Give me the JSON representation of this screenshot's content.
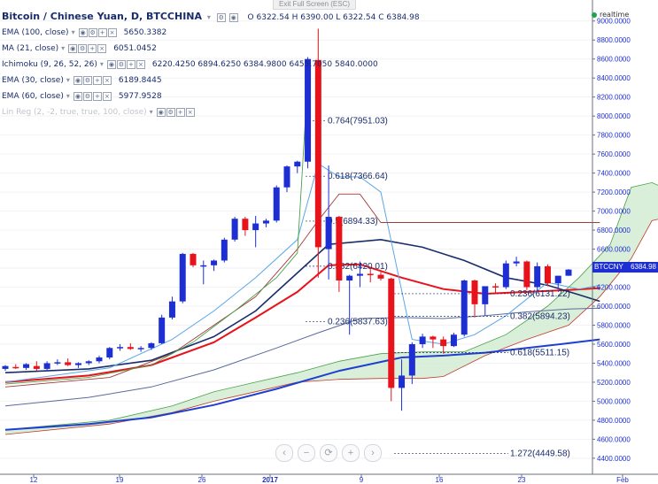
{
  "header": {
    "title": "Bitcoin / Chinese Yuan, D, BTCCHINA",
    "ohlc": "O 6322.54 H 6390.00 L 6322.54 C 6384.98",
    "exit_full_screen": "Exit Full Screen (ESC)",
    "realtime": "realtime"
  },
  "indicators": [
    {
      "label": "EMA (100, close)",
      "value": "5650.3382",
      "color": "#1f3fcf",
      "dim": false
    },
    {
      "label": "MA (21, close)",
      "value": "6051.0452",
      "color": "#1a2d6b",
      "dim": false
    },
    {
      "label": "Ichimoku (9, 26, 52, 26)",
      "value": "6220.4250  6894.6250  6384.9800  6455.7050  5840.0000",
      "color": "#1a2d6b",
      "dim": false
    },
    {
      "label": "EMA (30, close)",
      "value": "6189.8445",
      "color": "#1a2d6b",
      "dim": false
    },
    {
      "label": "EMA (60, close)",
      "value": "5977.9528",
      "color": "#1a2d6b",
      "dim": false
    },
    {
      "label": "Lin Reg (2, -2, true, true, 100, close)",
      "value": "",
      "color": "#c0c4cc",
      "dim": true
    }
  ],
  "price_tag": {
    "symbol": "BTCCNY",
    "value": "6384.98"
  },
  "zoom_buttons": [
    "‹",
    "−",
    "⟳",
    "+",
    "›"
  ],
  "chart_data": {
    "type": "candlestick",
    "y_axis_labels": [
      "9000.0000",
      "8800.0000",
      "8600.0000",
      "8400.0000",
      "8200.0000",
      "8000.0000",
      "7800.0000",
      "7600.0000",
      "7400.0000",
      "7200.0000",
      "7000.0000",
      "6800.0000",
      "6600.0000",
      "6400.0000",
      "6200.0000",
      "6000.0000",
      "5800.0000",
      "5600.0000",
      "5400.0000",
      "5200.0000",
      "5000.0000",
      "4800.0000",
      "4600.0000",
      "4400.0000"
    ],
    "ylim": [
      4250,
      9100
    ],
    "x_tick_labels": [
      "12",
      "19",
      "26",
      "2017",
      "9",
      "16",
      "23",
      "Feb"
    ],
    "fib_levels": [
      {
        "label": "0.764(7951.03)",
        "value": 7951.03
      },
      {
        "label": "0.618(7366.64)",
        "value": 7366.64
      },
      {
        "label": "0.5(6894.33)",
        "value": 6894.33
      },
      {
        "label": "0.382(6420.01)",
        "value": 6420.01
      },
      {
        "label": "0.236(5837.63)",
        "value": 5837.63
      },
      {
        "label": "0.236(6131.22)",
        "value": 6131.22
      },
      {
        "label": "0.382(5894.23)",
        "value": 5894.23
      },
      {
        "label": "0.618(5511.15)",
        "value": 5511.15
      },
      {
        "label": "1.272(4449.58)",
        "value": 4449.58
      }
    ],
    "candles": [
      [
        5340,
        5380,
        5320,
        5370
      ],
      [
        5360,
        5390,
        5340,
        5350
      ],
      [
        5350,
        5400,
        5330,
        5390
      ],
      [
        5370,
        5420,
        5320,
        5340
      ],
      [
        5340,
        5420,
        5320,
        5400
      ],
      [
        5400,
        5440,
        5380,
        5410
      ],
      [
        5410,
        5450,
        5370,
        5380
      ],
      [
        5380,
        5410,
        5350,
        5400
      ],
      [
        5400,
        5430,
        5380,
        5420
      ],
      [
        5420,
        5480,
        5400,
        5460
      ],
      [
        5460,
        5570,
        5440,
        5560
      ],
      [
        5560,
        5600,
        5530,
        5570
      ],
      [
        5570,
        5610,
        5540,
        5550
      ],
      [
        5550,
        5580,
        5520,
        5560
      ],
      [
        5560,
        5620,
        5540,
        5610
      ],
      [
        5610,
        5910,
        5600,
        5880
      ],
      [
        5880,
        6100,
        5860,
        6050
      ],
      [
        6050,
        6560,
        6030,
        6550
      ],
      [
        6550,
        6560,
        6410,
        6430
      ],
      [
        6430,
        6480,
        6230,
        6430
      ],
      [
        6430,
        6490,
        6370,
        6480
      ],
      [
        6480,
        6720,
        6460,
        6700
      ],
      [
        6700,
        6940,
        6680,
        6920
      ],
      [
        6920,
        6940,
        6740,
        6800
      ],
      [
        6800,
        6950,
        6620,
        6870
      ],
      [
        6870,
        6920,
        6830,
        6900
      ],
      [
        6900,
        7270,
        6880,
        7250
      ],
      [
        7250,
        7480,
        7200,
        7470
      ],
      [
        7470,
        7530,
        7400,
        7520
      ],
      [
        7520,
        8620,
        7450,
        8600
      ],
      [
        8590,
        8920,
        6300,
        6620
      ],
      [
        6600,
        7480,
        6280,
        6940
      ],
      [
        6940,
        6950,
        6150,
        6270
      ],
      [
        6270,
        6330,
        5700,
        6320
      ],
      [
        6320,
        6470,
        6200,
        6340
      ],
      [
        6340,
        6390,
        6250,
        6330
      ],
      [
        6330,
        6360,
        6270,
        6290
      ],
      [
        6290,
        6300,
        5000,
        5140
      ],
      [
        5140,
        5440,
        4900,
        5270
      ],
      [
        5270,
        5620,
        5180,
        5600
      ],
      [
        5600,
        5710,
        5560,
        5680
      ],
      [
        5680,
        5690,
        5560,
        5650
      ],
      [
        5650,
        5680,
        5500,
        5580
      ],
      [
        5580,
        5720,
        5570,
        5700
      ],
      [
        5700,
        6280,
        5680,
        6270
      ],
      [
        6270,
        6280,
        5880,
        6020
      ],
      [
        6020,
        6200,
        5900,
        6210
      ],
      [
        6210,
        6240,
        6130,
        6200
      ],
      [
        6200,
        6480,
        6180,
        6450
      ],
      [
        6450,
        6520,
        6420,
        6470
      ],
      [
        6470,
        6480,
        6170,
        6200
      ],
      [
        6200,
        6460,
        6160,
        6420
      ],
      [
        6420,
        6440,
        6210,
        6240
      ],
      [
        6240,
        6320,
        6180,
        6320
      ],
      [
        6320,
        6390,
        6320,
        6385
      ]
    ]
  }
}
